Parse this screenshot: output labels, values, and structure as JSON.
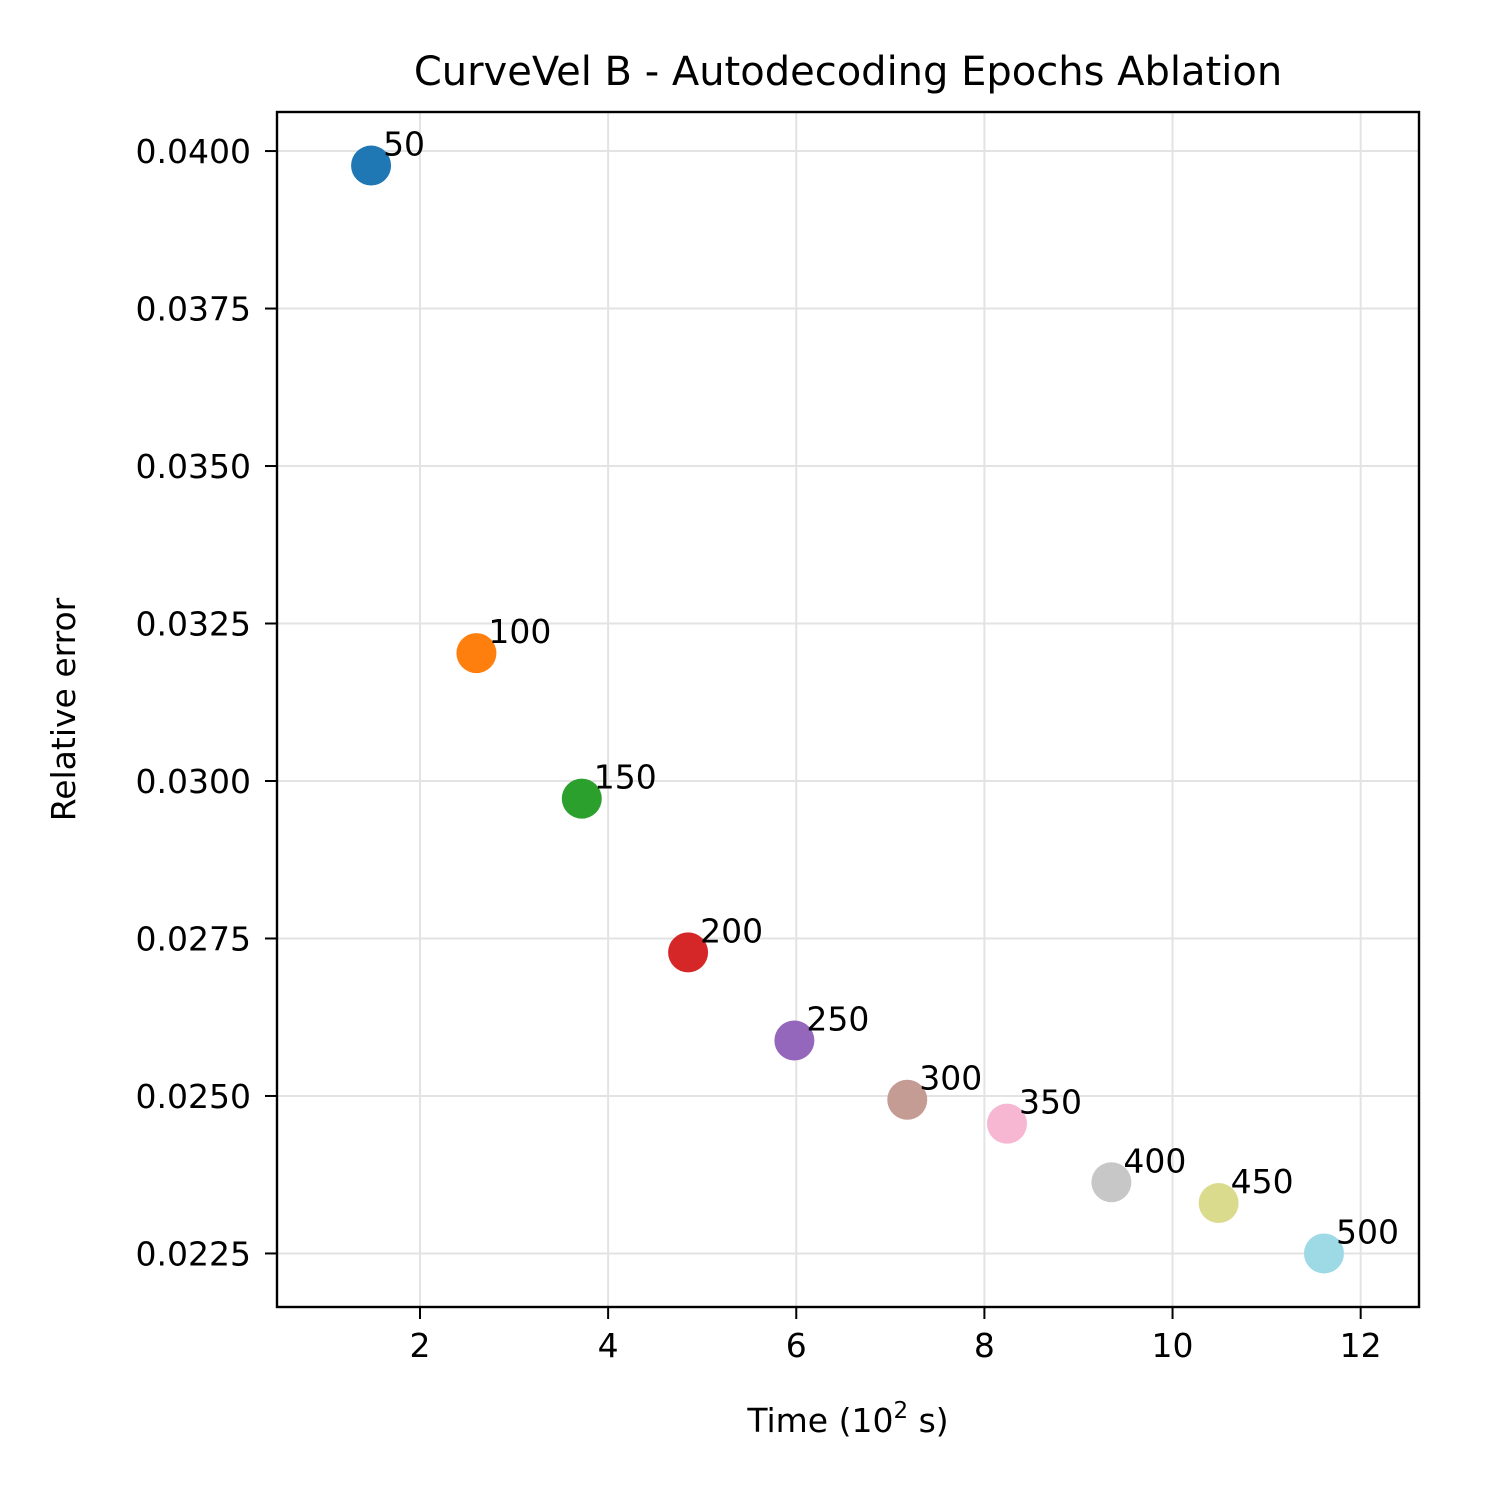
{
  "chart_data": {
    "type": "scatter",
    "title": "CurveVel B - Autodecoding Epochs Ablation",
    "xlabel": "Time (10",
    "xlabel_sup": "2",
    "xlabel_suffix": " s)",
    "ylabel": "Relative error",
    "xlim": [
      0.48,
      12.62
    ],
    "ylim": [
      0.02165,
      0.04062
    ],
    "xticks": [
      2,
      4,
      6,
      8,
      10,
      12
    ],
    "xtick_labels": [
      "2",
      "4",
      "6",
      "8",
      "10",
      "12"
    ],
    "yticks": [
      0.0225,
      0.025,
      0.0275,
      0.03,
      0.0325,
      0.035,
      0.0375,
      0.04
    ],
    "ytick_labels": [
      "0.0225",
      "0.0250",
      "0.0275",
      "0.0300",
      "0.0325",
      "0.0350",
      "0.0375",
      "0.0400"
    ],
    "grid": true,
    "points": [
      {
        "label": "50",
        "x": 1.48,
        "y": 0.03977,
        "color": "#1f77b4"
      },
      {
        "label": "100",
        "x": 2.6,
        "y": 0.03203,
        "color": "#ff7f0e"
      },
      {
        "label": "150",
        "x": 3.72,
        "y": 0.02972,
        "color": "#2ca02c"
      },
      {
        "label": "200",
        "x": 4.85,
        "y": 0.02728,
        "color": "#d62728"
      },
      {
        "label": "250",
        "x": 5.98,
        "y": 0.02588,
        "color": "#9467bd"
      },
      {
        "label": "300",
        "x": 7.18,
        "y": 0.02494,
        "color": "#c49c94"
      },
      {
        "label": "350",
        "x": 8.24,
        "y": 0.02456,
        "color": "#f7b6d2"
      },
      {
        "label": "400",
        "x": 9.35,
        "y": 0.02363,
        "color": "#c7c7c7"
      },
      {
        "label": "450",
        "x": 10.49,
        "y": 0.0233,
        "color": "#dbdb8d"
      },
      {
        "label": "500",
        "x": 11.61,
        "y": 0.0225,
        "color": "#9edae5"
      }
    ]
  }
}
